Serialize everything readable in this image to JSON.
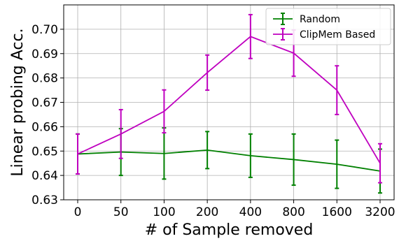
{
  "chart_data": {
    "type": "line",
    "title": "",
    "xlabel": "# of Sample removed",
    "ylabel": "Linear probing Acc.",
    "categories": [
      "0",
      "50",
      "100",
      "200",
      "400",
      "800",
      "1600",
      "3200"
    ],
    "ylim": [
      0.63,
      0.71
    ],
    "yticks": [
      0.63,
      0.64,
      0.65,
      0.66,
      0.67,
      0.68,
      0.69,
      0.7
    ],
    "ytick_labels": [
      "0.63",
      "0.64",
      "0.65",
      "0.66",
      "0.67",
      "0.68",
      "0.69",
      "0.70"
    ],
    "grid": true,
    "legend_position": "top-right",
    "series": [
      {
        "name": "Random",
        "color": "#008000",
        "values": [
          0.6488,
          0.6496,
          0.649,
          0.6504,
          0.6481,
          0.6465,
          0.6446,
          0.6418
        ],
        "errors": [
          0.0082,
          0.0096,
          0.0105,
          0.0076,
          0.0089,
          0.0105,
          0.0099,
          0.009
        ]
      },
      {
        "name": "ClipMem Based",
        "color": "#bf00bf",
        "values": [
          0.6488,
          0.657,
          0.6663,
          0.6822,
          0.697,
          0.6902,
          0.675,
          0.645
        ],
        "errors": [
          0.0082,
          0.01,
          0.0088,
          0.0072,
          0.009,
          0.0095,
          0.01,
          0.008
        ]
      }
    ]
  }
}
